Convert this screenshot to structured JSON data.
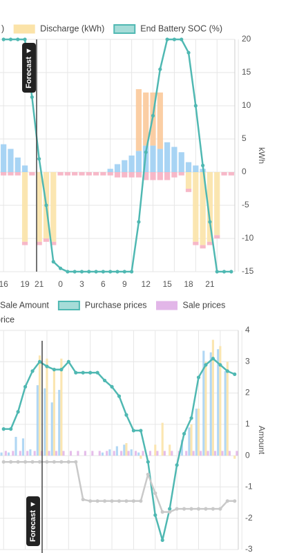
{
  "chart_data": [
    {
      "type": "bar",
      "stacked": true,
      "y_label": "kWh",
      "annotation": "Forecast ▼",
      "grid": true,
      "categories": [
        "16",
        null,
        null,
        "19",
        null,
        "21",
        null,
        null,
        "0",
        null,
        null,
        "3",
        null,
        null,
        "6",
        null,
        null,
        "9",
        null,
        null,
        "12",
        null,
        null,
        "15",
        null,
        null,
        "18",
        null,
        null,
        "21",
        null,
        null,
        null
      ],
      "ylim": [
        -15,
        20
      ],
      "yticks": [
        -15,
        -10,
        -5,
        0,
        5,
        10,
        15,
        20
      ],
      "series": [
        {
          "name": ")",
          "color": "#9fcff3",
          "values": [
            4.2,
            3.5,
            2.2,
            1.0,
            0,
            0,
            0,
            0,
            0,
            0,
            0,
            0,
            0,
            0,
            0,
            0.5,
            1.2,
            1.8,
            2.5,
            3.2,
            4.0,
            4.0,
            3.5,
            4.5,
            3.8,
            3.0,
            1.5,
            1.0,
            0.5,
            0,
            0,
            0,
            0
          ]
        },
        {
          "name": "Discharge (kWh)",
          "color": "#fbe3a8",
          "values": [
            0,
            0,
            0,
            -10.5,
            0,
            -10.5,
            -10,
            -10.5,
            0,
            0,
            0,
            0,
            0,
            0,
            0,
            0,
            0,
            0,
            0,
            0,
            0,
            0,
            0,
            0,
            0,
            0,
            -2.5,
            -10.5,
            -11,
            -10.5,
            -9.5,
            0,
            0
          ]
        },
        {
          "color": "#fbc99a",
          "values": [
            0,
            0,
            0,
            0,
            0,
            0,
            0,
            0,
            0,
            0,
            0,
            0,
            0,
            0,
            0,
            0,
            0,
            0,
            0,
            9.3,
            8.0,
            8.0,
            8.5,
            0,
            0,
            0,
            0,
            0,
            0,
            0,
            0,
            0,
            0
          ]
        },
        {
          "color": "#f6b0c2",
          "values": [
            -0.5,
            -0.5,
            -0.5,
            -0.5,
            -0.5,
            -0.5,
            -0.5,
            -0.5,
            -0.5,
            -0.5,
            -0.5,
            -0.5,
            -0.5,
            -0.5,
            -0.5,
            -0.5,
            -0.8,
            -0.8,
            -0.8,
            -0.8,
            -1.2,
            -1.2,
            -1.2,
            -1.2,
            -0.8,
            -0.5,
            -0.5,
            -0.5,
            -0.5,
            -0.5,
            -0.5,
            -0.5,
            -0.5
          ]
        },
        {
          "name": "End Battery SOC (%)",
          "type": "line",
          "color": "#4fb8b2",
          "values": [
            20,
            20,
            20,
            20,
            11.3,
            2,
            -5,
            -13.5,
            -14.5,
            -15,
            -15,
            -15,
            -15,
            -15,
            -15,
            -15,
            -15,
            -15,
            -15,
            -7.5,
            3,
            8.5,
            15.5,
            20,
            20,
            20,
            18,
            10,
            1,
            -7.5,
            -15,
            -15,
            -15
          ]
        }
      ]
    },
    {
      "type": "bar",
      "stacked": false,
      "y_label": "Amount",
      "annotation": "Forecast ▼",
      "grid": true,
      "ylim": [
        -3,
        4
      ],
      "yticks": [
        -3,
        -2,
        -1,
        0,
        1,
        2,
        3,
        4
      ],
      "series": [
        {
          "color": "#a9d3f3",
          "values": [
            0.1,
            0.1,
            0.6,
            0.55,
            0.2,
            2.25,
            2.15,
            1.7,
            2.1,
            0,
            0,
            0,
            0,
            0,
            0.1,
            0.2,
            0.3,
            0.35,
            0.2,
            0.1,
            0,
            0,
            0,
            0,
            0,
            0.5,
            0.9,
            1.5,
            3.35,
            3.3,
            3.4,
            2.7,
            0
          ]
        },
        {
          "name": "Sale Amount",
          "color": "#fbe3a8",
          "values": [
            0,
            0,
            0,
            0,
            0,
            3.2,
            3.1,
            2.8,
            3.1,
            0,
            0,
            0,
            0,
            0,
            0,
            0,
            0,
            0.4,
            0,
            -0.1,
            0,
            0.35,
            1.05,
            0.35,
            0,
            0,
            1.0,
            1.5,
            3.0,
            3.7,
            3.5,
            3.0,
            -0.1
          ]
        },
        {
          "name": "Purchase prices",
          "type": "line",
          "color": "#4fb8b2",
          "values": [
            0.85,
            0.85,
            1.4,
            2.2,
            2.7,
            3.0,
            2.85,
            2.75,
            2.75,
            3.0,
            2.65,
            2.65,
            2.65,
            2.65,
            2.4,
            2.2,
            1.9,
            1.3,
            0.8,
            0.8,
            -0.2,
            -1.9,
            -2.7,
            -1.7,
            -0.3,
            0.7,
            1.2,
            2.5,
            2.9,
            3.1,
            2.9,
            2.7,
            2.6
          ]
        },
        {
          "name": "Sale prices",
          "color": "#e2b6e8",
          "values": [
            0.15,
            0.15,
            0.15,
            0.15,
            0.15,
            0.15,
            0.15,
            0.15,
            0.15,
            0.15,
            0.15,
            0.15,
            0.15,
            0.15,
            0.15,
            0.15,
            0.15,
            0.15,
            0.15,
            0.15,
            0.15,
            0.15,
            0.15,
            0.15,
            0.15,
            0.15,
            0.15,
            0.15,
            0.15,
            0.15,
            0.15,
            0.15,
            0.15
          ]
        },
        {
          "name": "price",
          "type": "line",
          "color": "#c9c9c9",
          "values": [
            -0.2,
            -0.2,
            -0.2,
            -0.2,
            -0.2,
            -0.2,
            -0.2,
            -0.2,
            -0.2,
            -0.2,
            -0.2,
            -1.4,
            -1.45,
            -1.45,
            -1.45,
            -1.45,
            -1.45,
            -1.45,
            -1.45,
            -1.45,
            -0.6,
            -1.2,
            -1.8,
            -1.8,
            -1.7,
            -1.7,
            -1.7,
            -1.7,
            -1.7,
            -1.7,
            -1.7,
            -1.45,
            -1.45
          ]
        }
      ]
    }
  ]
}
